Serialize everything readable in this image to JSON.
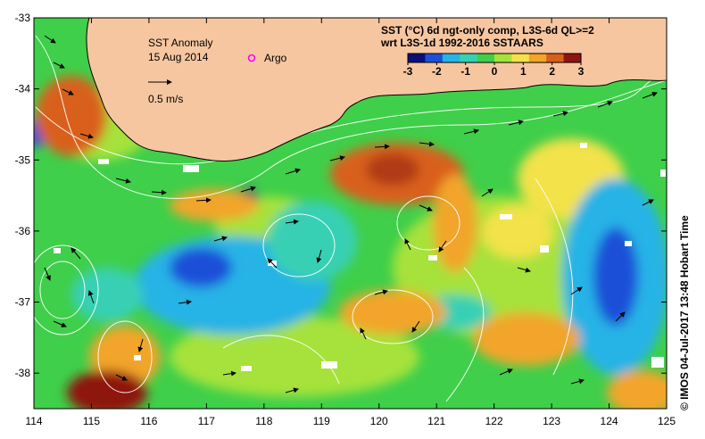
{
  "title": {
    "line1": "SST Anomaly",
    "line2": "15 Aug 2014"
  },
  "legend": {
    "argo_label": "Argo",
    "vector_label": "0.5 m/s",
    "colorbar_title1": "SST (°C) 6d ngt-only comp, L3S-6d QL>=2",
    "colorbar_title2": "wrt L3S-1d 1992-2016 SSTAARS",
    "colorbar_ticks": [
      "-3",
      "-2",
      "-1",
      "0",
      "1",
      "2",
      "3"
    ],
    "colorbar_colors": [
      "#0b0f7a",
      "#1f4fd8",
      "#27b3e6",
      "#37d0b4",
      "#3fcf4a",
      "#a6e23a",
      "#f3e24a",
      "#f2a52b",
      "#d9601c",
      "#8e1410"
    ]
  },
  "axes": {
    "x_ticks": [
      "114",
      "115",
      "116",
      "117",
      "118",
      "119",
      "120",
      "121",
      "122",
      "123",
      "124",
      "125"
    ],
    "y_ticks": [
      "-33",
      "-34",
      "-35",
      "-36",
      "-37",
      "-38"
    ]
  },
  "credit": "© IMOS 04-Jul-2017 13:48 Hobart Time",
  "colors": {
    "land": "#f6c6a0",
    "warm": "#d9601c",
    "hot": "#8e1410",
    "cool": "#27b3e6",
    "cold": "#1f4fd8",
    "neutral": "#3fcf4a",
    "mild": "#a6e23a",
    "argo": "#ff00ff"
  }
}
